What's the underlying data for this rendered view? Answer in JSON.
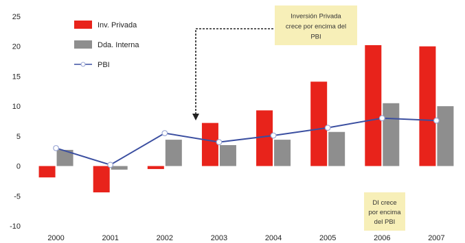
{
  "chart_data": {
    "type": "bar",
    "categories": [
      "2000",
      "2001",
      "2002",
      "2003",
      "2004",
      "2005",
      "2006",
      "2007"
    ],
    "series": [
      {
        "name": "Inv. Privada",
        "kind": "bar",
        "color": "#e8231b",
        "values": [
          -1.9,
          -4.4,
          -0.5,
          7.2,
          9.3,
          14.1,
          20.2,
          20.0
        ]
      },
      {
        "name": "Dda. Interna",
        "kind": "bar",
        "color": "#8e8e8e",
        "values": [
          2.7,
          -0.6,
          4.4,
          3.5,
          4.4,
          5.7,
          10.5,
          10.0
        ]
      },
      {
        "name": "PBI",
        "kind": "line",
        "color": "#3a4ea0",
        "values": [
          3.0,
          0.2,
          5.5,
          4.0,
          5.1,
          6.4,
          8.0,
          7.6
        ]
      }
    ],
    "ylim": [
      -10,
      25
    ],
    "yticks": [
      -10,
      -5,
      0,
      5,
      10,
      15,
      20,
      25
    ],
    "legend_position": "top-left",
    "annotations": [
      {
        "lines": [
          "Inversión Privada",
          "crece por encima del",
          "PBI"
        ]
      },
      {
        "lines": [
          "DI crece",
          "por encima",
          "del PBI"
        ]
      }
    ],
    "colors": {
      "note_bg": "#f7efb8",
      "arrow": "#222222"
    }
  }
}
